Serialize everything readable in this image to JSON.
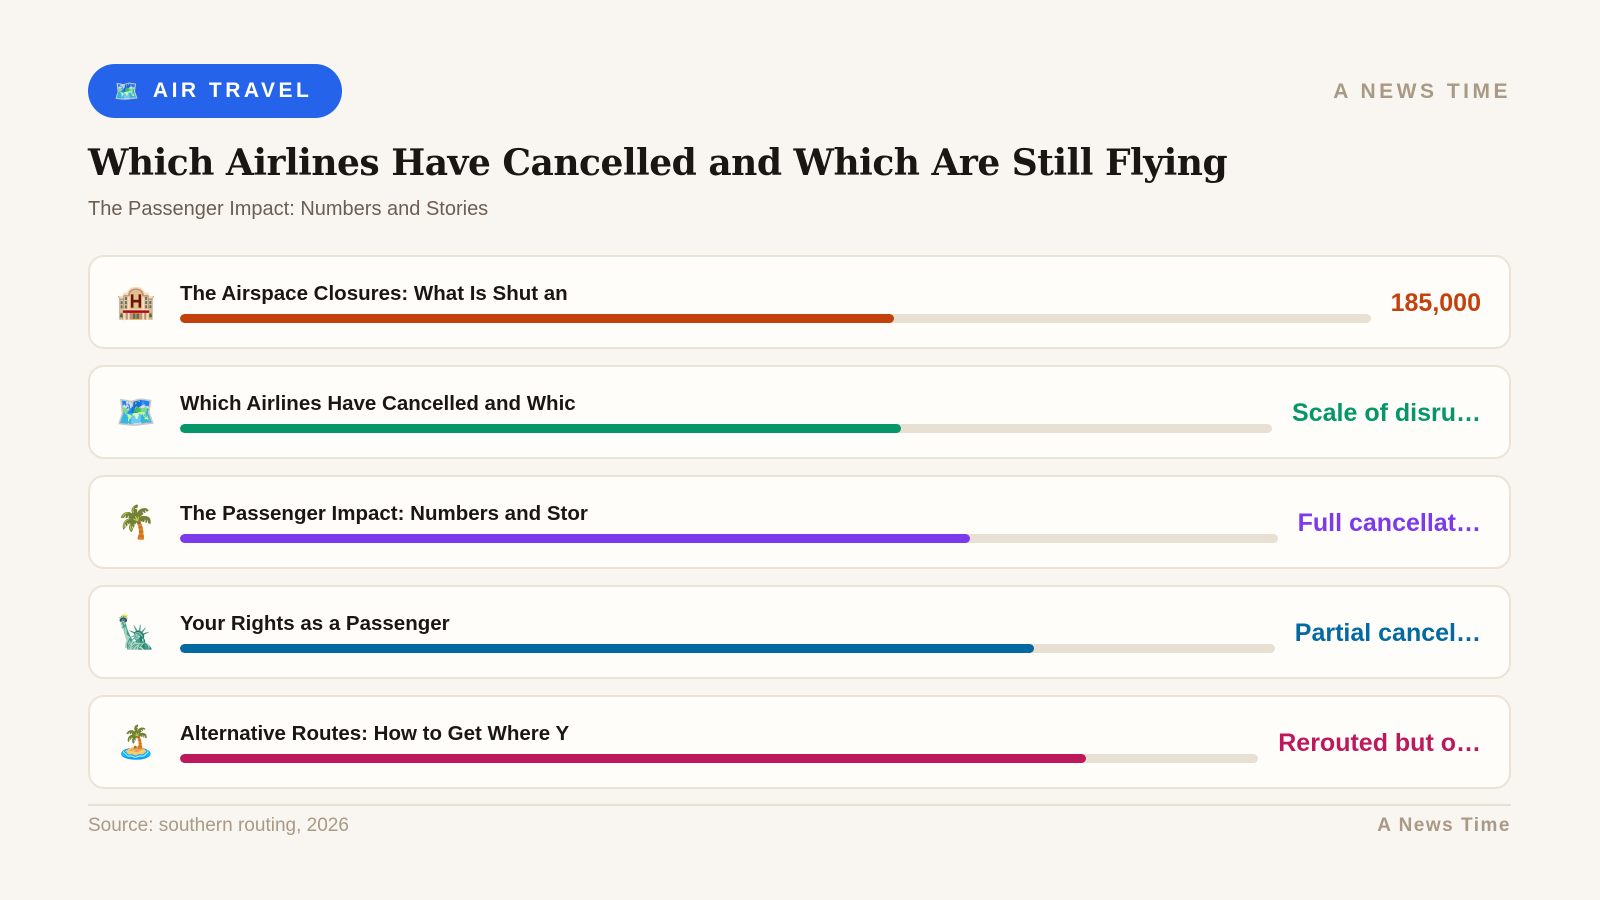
{
  "header": {
    "category": {
      "icon": "world-map-icon",
      "glyph": "🗺️",
      "label": "AIR TRAVEL",
      "color": "#2563eb"
    },
    "brand": "A NEWS TIME",
    "title": "Which Airlines Have Cancelled and Which Are Still Flying",
    "subtitle": "The Passenger Impact: Numbers and Stories"
  },
  "rows": [
    {
      "icon": "hotel-icon",
      "glyph": "🏨",
      "label": "The Airspace Closures: What Is Shut an",
      "value": "185,000",
      "progress_percent": 60,
      "color": "#c2410c"
    },
    {
      "icon": "world-map-icon",
      "glyph": "🗺️",
      "label": "Which Airlines Have Cancelled and Whic",
      "value": "Scale of disru…",
      "progress_percent": 66,
      "color": "#059669"
    },
    {
      "icon": "palm-tree-icon",
      "glyph": "🌴",
      "label": "The Passenger Impact: Numbers and Stor",
      "value": "Full cancellat…",
      "progress_percent": 72,
      "color": "#7c3aed"
    },
    {
      "icon": "statue-of-liberty-icon",
      "glyph": "🗽",
      "label": "Your Rights as a Passenger",
      "value": "Partial cancel…",
      "progress_percent": 78,
      "color": "#0369a1"
    },
    {
      "icon": "desert-island-icon",
      "glyph": "🏝️",
      "label": "Alternative Routes: How to Get Where Y",
      "value": "Rerouted but o…",
      "progress_percent": 84,
      "color": "#be185d"
    }
  ],
  "footer": {
    "source": "Source: southern routing, 2026",
    "brand": "A News Time"
  }
}
